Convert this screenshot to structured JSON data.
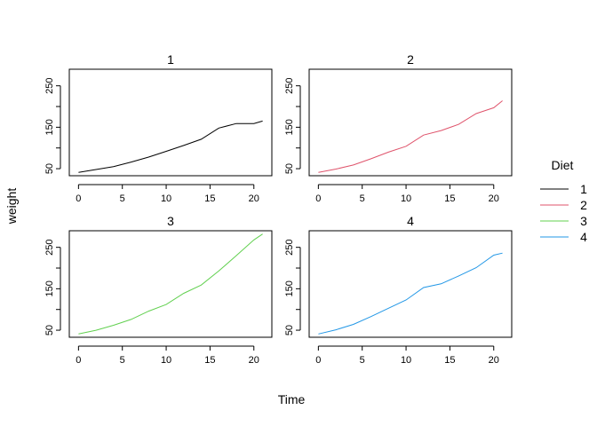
{
  "chart_data": {
    "type": "line",
    "xlabel": "Time",
    "ylabel": "weight",
    "xlim": [
      -1.05,
      22.05
    ],
    "ylim": [
      33,
      290
    ],
    "x_ticks": [
      0,
      5,
      10,
      15,
      20
    ],
    "y_ticks": [
      50,
      150,
      250
    ],
    "y_minor_ticks": [
      100,
      200
    ],
    "legend": {
      "title": "Diet",
      "placement": "right",
      "entries": [
        {
          "label": "1",
          "color": "#000000"
        },
        {
          "label": "2",
          "color": "#DF536B"
        },
        {
          "label": "3",
          "color": "#61D04F"
        },
        {
          "label": "4",
          "color": "#2297E6"
        }
      ]
    },
    "panels": [
      {
        "title": "1",
        "color": "#000000",
        "x": [
          0,
          2,
          4,
          6,
          8,
          10,
          12,
          14,
          16,
          18,
          20,
          21
        ],
        "y": [
          41,
          48,
          55,
          66,
          78,
          92,
          106,
          121,
          148,
          159,
          159,
          165
        ]
      },
      {
        "title": "2",
        "color": "#DF536B",
        "x": [
          0,
          2,
          4,
          6,
          8,
          10,
          12,
          14,
          16,
          18,
          20,
          21
        ],
        "y": [
          41,
          49,
          59,
          74,
          90,
          104,
          131,
          142,
          157,
          183,
          197,
          214
        ]
      },
      {
        "title": "3",
        "color": "#61D04F",
        "x": [
          0,
          2,
          4,
          6,
          8,
          10,
          12,
          14,
          16,
          18,
          20,
          21
        ],
        "y": [
          41,
          50,
          62,
          76,
          96,
          112,
          139,
          159,
          193,
          230,
          268,
          282
        ]
      },
      {
        "title": "4",
        "color": "#2297E6",
        "x": [
          0,
          2,
          4,
          6,
          8,
          10,
          12,
          14,
          16,
          18,
          20,
          21
        ],
        "y": [
          41,
          51,
          64,
          83,
          103,
          123,
          153,
          162,
          181,
          201,
          231,
          236
        ]
      }
    ]
  }
}
